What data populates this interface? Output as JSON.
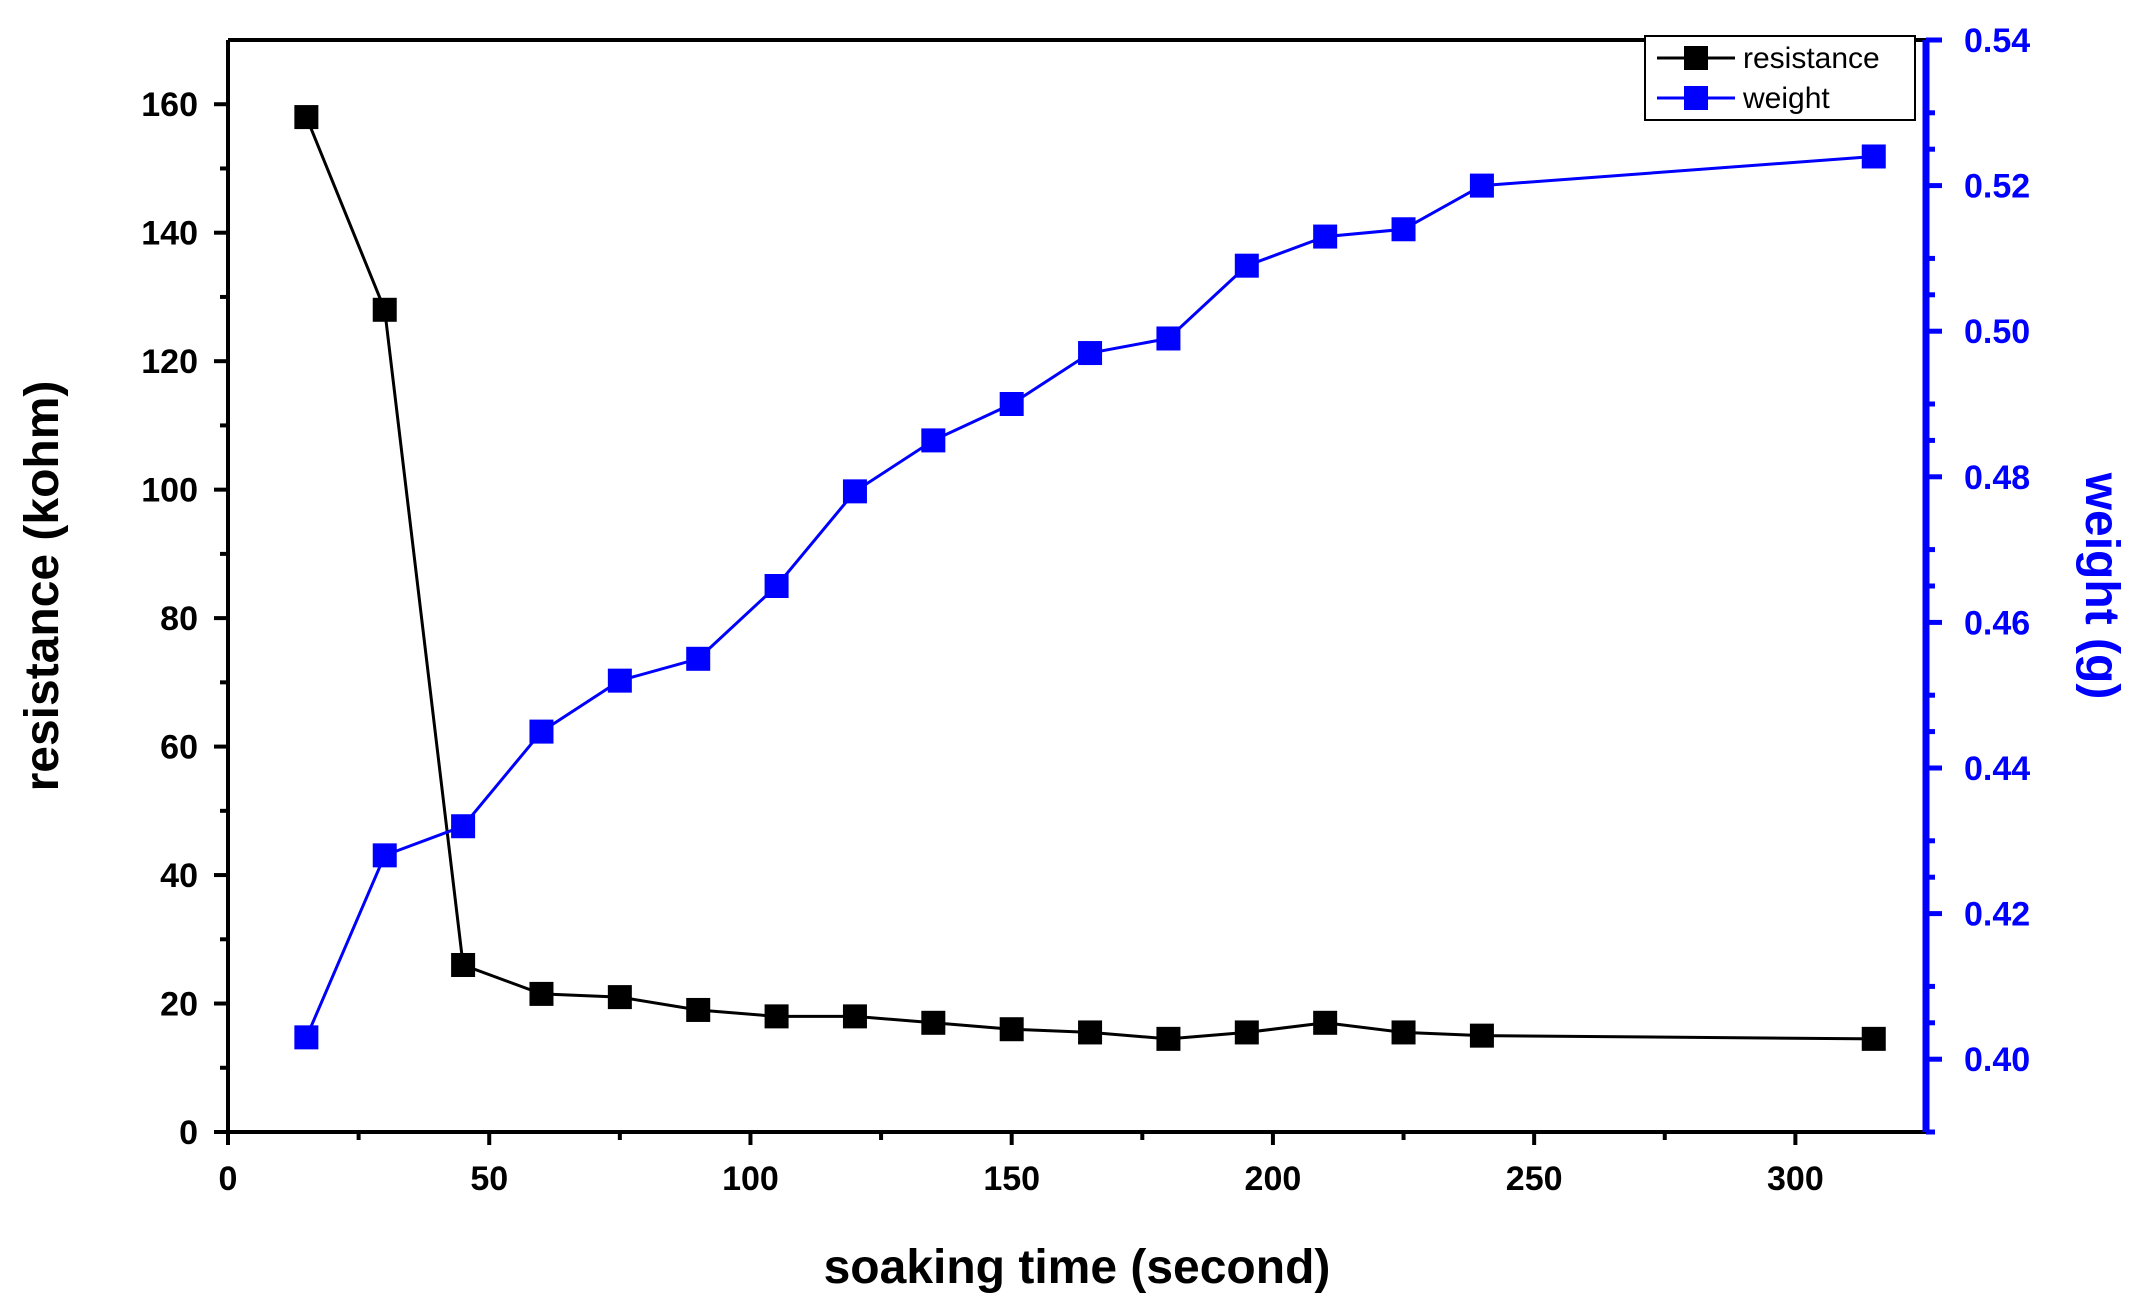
{
  "chart_data": {
    "type": "line",
    "xlabel": "soaking time (second)",
    "ylabel": "resistance (kohm)",
    "y2label": "weight (g)",
    "xlim": [
      0,
      325
    ],
    "ylim": [
      0,
      170
    ],
    "y2lim": [
      0.39,
      0.54
    ],
    "x_ticks": [
      0,
      50,
      100,
      150,
      200,
      250,
      300
    ],
    "y_ticks": [
      0,
      20,
      40,
      60,
      80,
      100,
      120,
      140,
      160
    ],
    "y2_ticks": [
      0.4,
      0.42,
      0.44,
      0.46,
      0.48,
      0.5,
      0.52,
      0.54
    ],
    "x_tick_labels": [
      "0",
      "50",
      "100",
      "150",
      "200",
      "250",
      "300"
    ],
    "y_tick_labels": [
      "0",
      "20",
      "40",
      "60",
      "80",
      "100",
      "120",
      "140",
      "160"
    ],
    "y2_tick_labels": [
      "0.40",
      "0.42",
      "0.44",
      "0.46",
      "0.48",
      "0.50",
      "0.52",
      "0.54"
    ],
    "legend_position": "top-right",
    "series": [
      {
        "name": "resistance",
        "axis": "left",
        "color": "#000000",
        "x": [
          15,
          30,
          45,
          60,
          75,
          90,
          105,
          120,
          135,
          150,
          165,
          180,
          195,
          210,
          225,
          240,
          315
        ],
        "y": [
          158,
          128,
          26,
          21.5,
          21,
          19,
          18,
          18,
          17,
          16,
          15.5,
          14.5,
          15.5,
          17,
          15.5,
          15,
          14.5
        ]
      },
      {
        "name": "weight",
        "axis": "right",
        "color": "#0000ff",
        "x": [
          15,
          30,
          45,
          60,
          75,
          90,
          105,
          120,
          135,
          150,
          165,
          180,
          195,
          210,
          225,
          240,
          315
        ],
        "y": [
          0.403,
          0.428,
          0.432,
          0.445,
          0.452,
          0.455,
          0.465,
          0.478,
          0.485,
          0.49,
          0.497,
          0.499,
          0.509,
          0.513,
          0.514,
          0.52,
          0.524
        ]
      }
    ]
  }
}
